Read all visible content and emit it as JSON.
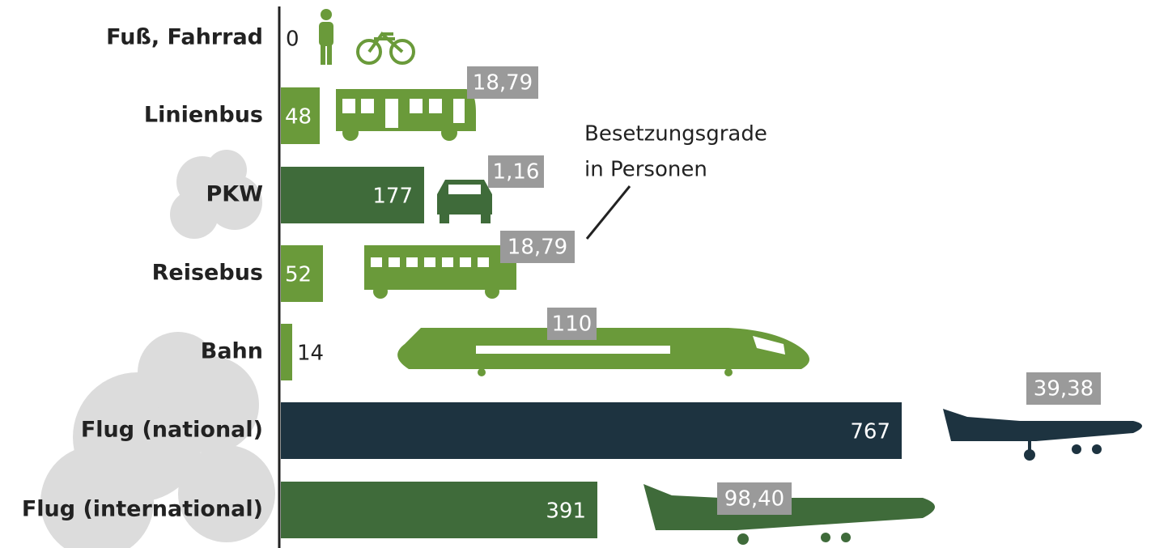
{
  "chart_data": {
    "type": "bar",
    "categories": [
      "Fuß, Fahrrad",
      "Linienbus",
      "PKW",
      "Reisebus",
      "Bahn",
      "Flug (national)",
      "Flug (international)"
    ],
    "values": [
      0,
      48,
      177,
      52,
      14,
      767,
      391
    ],
    "colors": [
      "#6a9a3a",
      "#6a9a3a",
      "#3f6b3a",
      "#6a9a3a",
      "#6a9a3a",
      "#1d3340",
      "#3f6b3a"
    ],
    "occupancy": [
      null,
      18.79,
      1.16,
      18.79,
      110,
      39.38,
      98.4
    ],
    "occupancy_labels": [
      null,
      "18,79",
      "1,16",
      "18,79",
      "110",
      "39,38",
      "98,40"
    ],
    "annotation": [
      "Besetzungsgrade",
      "in Personen"
    ]
  }
}
